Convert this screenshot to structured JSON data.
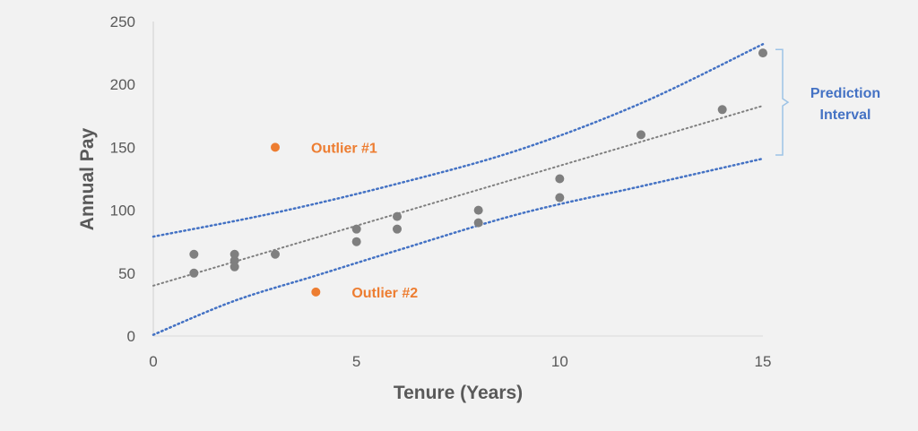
{
  "chart_data": {
    "type": "scatter",
    "xlabel": "Tenure (Years)",
    "ylabel": "Annual Pay",
    "xlim": [
      0,
      15
    ],
    "ylim": [
      0,
      250
    ],
    "x_ticks": [
      0,
      5,
      10,
      15
    ],
    "y_ticks": [
      0,
      50,
      100,
      150,
      200,
      250
    ],
    "grid": false,
    "series": [
      {
        "color": "#7f7f7f",
        "points": [
          [
            1,
            65
          ],
          [
            1,
            50
          ],
          [
            2,
            65
          ],
          [
            2,
            60
          ],
          [
            2,
            55
          ],
          [
            3,
            65
          ],
          [
            5,
            85
          ],
          [
            5,
            75
          ],
          [
            6,
            95
          ],
          [
            6,
            85
          ],
          [
            8,
            100
          ],
          [
            8,
            90
          ],
          [
            10,
            125
          ],
          [
            10,
            110
          ],
          [
            12,
            160
          ],
          [
            14,
            180
          ],
          [
            15,
            225
          ]
        ]
      },
      {
        "color": "#ed7d31",
        "points": [
          [
            3,
            150
          ],
          [
            4,
            35
          ]
        ]
      }
    ],
    "trendline": {
      "color": "#7f7f7f",
      "style": "dotted",
      "points": [
        [
          0,
          40
        ],
        [
          15,
          183
        ]
      ]
    },
    "prediction_interval": {
      "color": "#4472c4",
      "style": "dotted",
      "upper": [
        [
          0,
          79
        ],
        [
          3,
          98
        ],
        [
          6,
          121
        ],
        [
          9,
          148
        ],
        [
          12,
          185
        ],
        [
          15,
          232
        ]
      ],
      "lower": [
        [
          0,
          1
        ],
        [
          2,
          28
        ],
        [
          4,
          48
        ],
        [
          6,
          68
        ],
        [
          9,
          97
        ],
        [
          12,
          119
        ],
        [
          15,
          141
        ]
      ]
    },
    "annotations": [
      {
        "text": "Outlier #1",
        "x": 3,
        "y": 150,
        "color": "#ed7d31"
      },
      {
        "text": "Outlier #2",
        "x": 4,
        "y": 35,
        "color": "#ed7d31"
      },
      {
        "text_lines": [
          "Prediction",
          "Interval"
        ],
        "color": "#4472c4",
        "brace_range": [
          141,
          232
        ],
        "brace_x": 15
      }
    ]
  }
}
